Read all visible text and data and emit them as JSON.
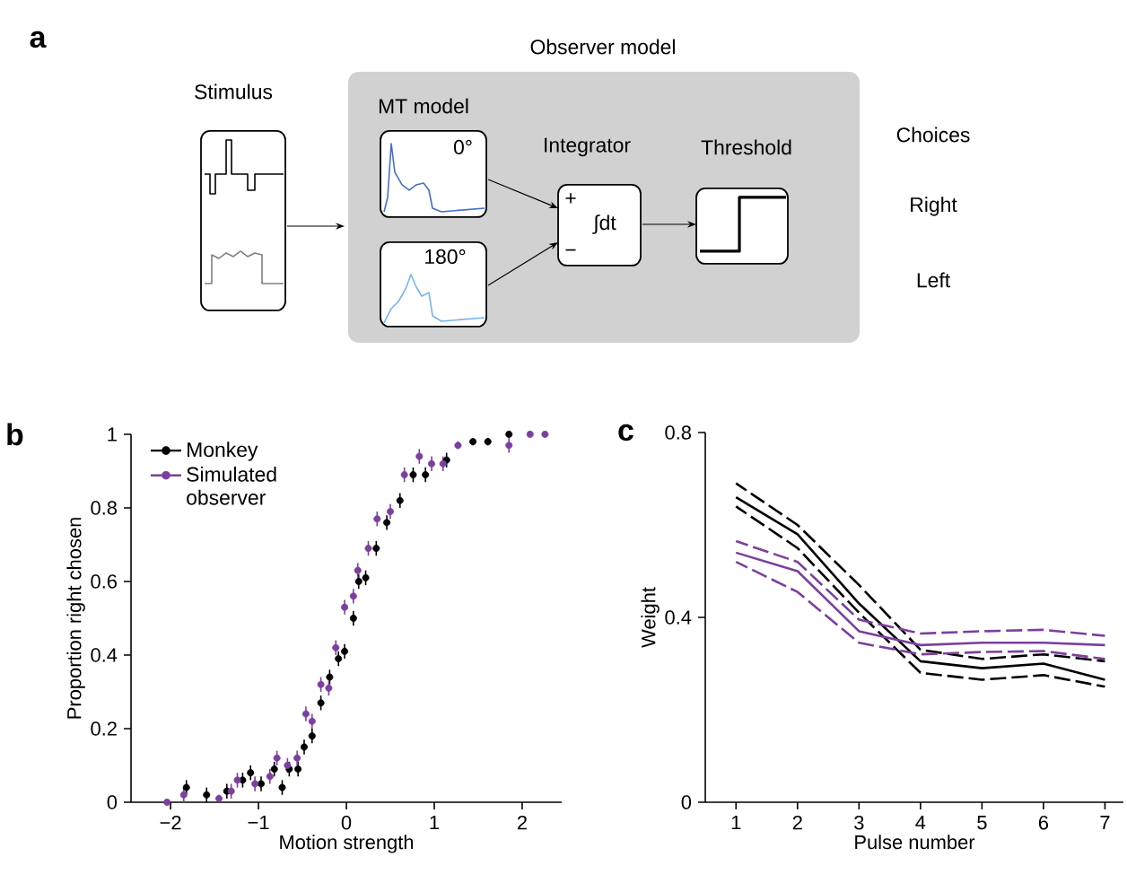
{
  "chart_data": [
    {
      "type": "other",
      "title": "a",
      "annotations": [
        "Observer model",
        "Stimulus",
        "MT model",
        "0°",
        "180°",
        "Integrator",
        "Threshold",
        "Choices",
        "Right",
        "Left",
        "+",
        "−",
        "∫dt"
      ]
    },
    {
      "type": "scatter",
      "title": "b",
      "xlabel": "Motion strength",
      "ylabel": "Proportion right chosen",
      "xlim": [
        -2.45,
        2.45
      ],
      "ylim": [
        0,
        1
      ],
      "xticks": [
        {
          "value": -2,
          "label": "−2"
        },
        {
          "value": -1,
          "label": "−1"
        },
        0,
        1,
        2
      ],
      "yticks": [
        0,
        0.2,
        0.4,
        0.6,
        0.8,
        1
      ],
      "legend": "top left",
      "marker": "circle",
      "series": [
        {
          "name": "Monkey",
          "color": "#000000",
          "x": [
            -1.82,
            -1.59,
            -1.36,
            -1.18,
            -1.09,
            -0.97,
            -0.82,
            -0.73,
            -0.65,
            -0.55,
            -0.48,
            -0.39,
            -0.29,
            -0.19,
            -0.09,
            -0.02,
            0.08,
            0.14,
            0.22,
            0.34,
            0.46,
            0.61,
            0.76,
            0.9,
            1.14,
            1.44,
            1.61,
            1.85
          ],
          "values": [
            0.04,
            0.02,
            0.03,
            0.06,
            0.08,
            0.05,
            0.09,
            0.04,
            0.09,
            0.09,
            0.15,
            0.18,
            0.27,
            0.34,
            0.39,
            0.41,
            0.5,
            0.6,
            0.61,
            0.69,
            0.76,
            0.82,
            0.89,
            0.89,
            0.93,
            0.98,
            0.98,
            1.0
          ],
          "errors": [
            0.02,
            0.02,
            0.02,
            0.02,
            0.02,
            0.02,
            0.02,
            0.02,
            0.02,
            0.02,
            0.02,
            0.02,
            0.02,
            0.02,
            0.02,
            0.02,
            0.02,
            0.02,
            0.02,
            0.02,
            0.02,
            0.02,
            0.02,
            0.02,
            0.02,
            0.01,
            0.01,
            0.0
          ]
        },
        {
          "name": "Simulated observer",
          "color": "#7b3f9e",
          "x": [
            -2.04,
            -1.85,
            -1.45,
            -1.31,
            -1.24,
            -1.04,
            -0.87,
            -0.79,
            -0.67,
            -0.56,
            -0.46,
            -0.39,
            -0.29,
            -0.2,
            -0.12,
            -0.02,
            0.08,
            0.13,
            0.25,
            0.35,
            0.5,
            0.66,
            0.83,
            0.97,
            1.1,
            1.27,
            1.85,
            2.09,
            2.26
          ],
          "values": [
            0.0,
            0.02,
            0.01,
            0.03,
            0.06,
            0.05,
            0.07,
            0.12,
            0.1,
            0.12,
            0.24,
            0.22,
            0.32,
            0.31,
            0.42,
            0.53,
            0.56,
            0.63,
            0.69,
            0.77,
            0.79,
            0.89,
            0.94,
            0.92,
            0.92,
            0.97,
            0.97,
            1.0,
            1.0
          ],
          "errors": [
            0.0,
            0.02,
            0.01,
            0.02,
            0.02,
            0.02,
            0.02,
            0.02,
            0.02,
            0.02,
            0.02,
            0.02,
            0.02,
            0.02,
            0.02,
            0.02,
            0.02,
            0.02,
            0.02,
            0.02,
            0.02,
            0.02,
            0.02,
            0.02,
            0.02,
            0.01,
            0.02,
            0.0,
            0.0
          ]
        }
      ]
    },
    {
      "type": "line",
      "title": "c",
      "xlabel": "Pulse number",
      "ylabel": "Weight",
      "xlim": [
        0.5,
        7.3
      ],
      "ylim": [
        0,
        0.8
      ],
      "xticks": [
        1,
        2,
        3,
        4,
        5,
        6,
        7
      ],
      "yticks": [
        0,
        0.4,
        0.8
      ],
      "x": [
        1,
        2,
        3,
        4,
        5,
        6,
        7
      ],
      "series": [
        {
          "color": "#000000",
          "line_style": "dashed",
          "values": [
            0.69,
            0.6,
            0.47,
            0.33,
            0.31,
            0.32,
            0.305
          ]
        },
        {
          "color": "#000000",
          "line_style": "solid",
          "values": [
            0.66,
            0.58,
            0.43,
            0.305,
            0.29,
            0.3,
            0.265
          ]
        },
        {
          "color": "#000000",
          "line_style": "dashed",
          "values": [
            0.64,
            0.55,
            0.41,
            0.28,
            0.265,
            0.275,
            0.25
          ]
        },
        {
          "color": "#7b3f9e",
          "line_style": "dashed",
          "values": [
            0.565,
            0.52,
            0.395,
            0.365,
            0.37,
            0.373,
            0.36
          ]
        },
        {
          "color": "#7b3f9e",
          "line_style": "solid",
          "values": [
            0.54,
            0.5,
            0.37,
            0.34,
            0.345,
            0.345,
            0.34
          ]
        },
        {
          "color": "#7b3f9e",
          "line_style": "dashed",
          "values": [
            0.52,
            0.455,
            0.345,
            0.32,
            0.325,
            0.327,
            0.31
          ]
        }
      ]
    }
  ]
}
